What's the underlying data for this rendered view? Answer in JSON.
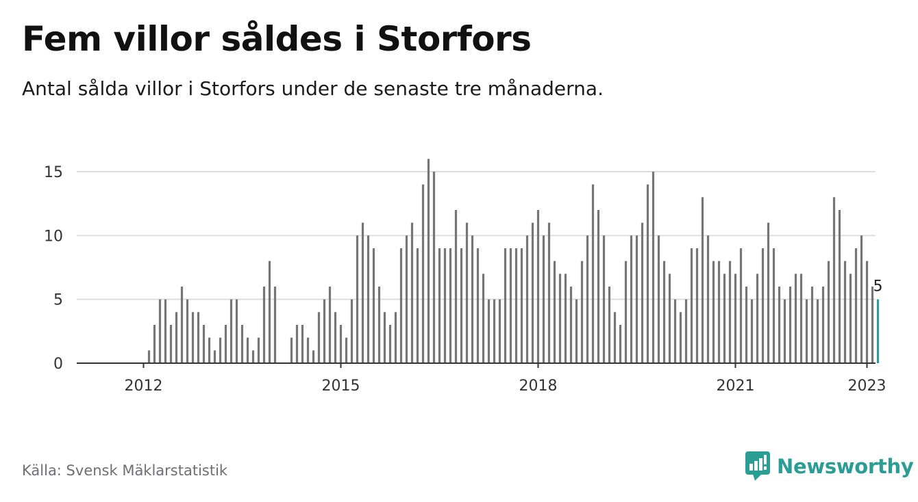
{
  "title": "Fem villor såldes i Storfors",
  "subtitle": "Antal sålda villor i Storfors under de senaste tre månaderna.",
  "footer": {
    "source": "Källa: Svensk Mäklarstatistik",
    "brand": "Newsworthy"
  },
  "colors": {
    "bar": "#75757a",
    "highlight": "#2a9d95",
    "grid": "#dedede",
    "axis": "#333333"
  },
  "icons": {
    "brand_logo": "newsworthy-chat-bar-icon"
  },
  "chart_data": {
    "type": "bar",
    "title": "Fem villor såldes i Storfors",
    "subtitle": "Antal sålda villor i Storfors under de senaste tre månaderna.",
    "xlabel": "",
    "ylabel": "",
    "ylim": [
      0,
      16
    ],
    "yticks": [
      0,
      5,
      10,
      15
    ],
    "xtick_labels": [
      "2012",
      "2015",
      "2018",
      "2021",
      "2023"
    ],
    "grid": true,
    "legend": "none",
    "start": "2011-07",
    "frequency": "monthly",
    "highlight_label": "5",
    "values": [
      null,
      null,
      null,
      null,
      null,
      null,
      null,
      1,
      3,
      5,
      5,
      3,
      4,
      6,
      5,
      4,
      4,
      3,
      2,
      1,
      2,
      3,
      5,
      5,
      3,
      2,
      1,
      2,
      6,
      8,
      6,
      null,
      null,
      2,
      3,
      3,
      2,
      1,
      4,
      5,
      6,
      4,
      3,
      2,
      5,
      10,
      11,
      10,
      9,
      6,
      4,
      3,
      4,
      9,
      10,
      11,
      9,
      14,
      16,
      15,
      9,
      9,
      9,
      12,
      9,
      11,
      10,
      9,
      7,
      5,
      5,
      5,
      9,
      9,
      9,
      9,
      10,
      11,
      12,
      10,
      11,
      8,
      7,
      7,
      6,
      5,
      8,
      10,
      14,
      12,
      10,
      6,
      4,
      3,
      8,
      10,
      10,
      11,
      14,
      15,
      10,
      8,
      7,
      5,
      4,
      5,
      9,
      9,
      13,
      10,
      8,
      8,
      7,
      8,
      7,
      9,
      6,
      5,
      7,
      9,
      11,
      9,
      6,
      5,
      6,
      7,
      7,
      5,
      6,
      5,
      6,
      8,
      13,
      12,
      8,
      7,
      9,
      10,
      8,
      6,
      5
    ]
  }
}
